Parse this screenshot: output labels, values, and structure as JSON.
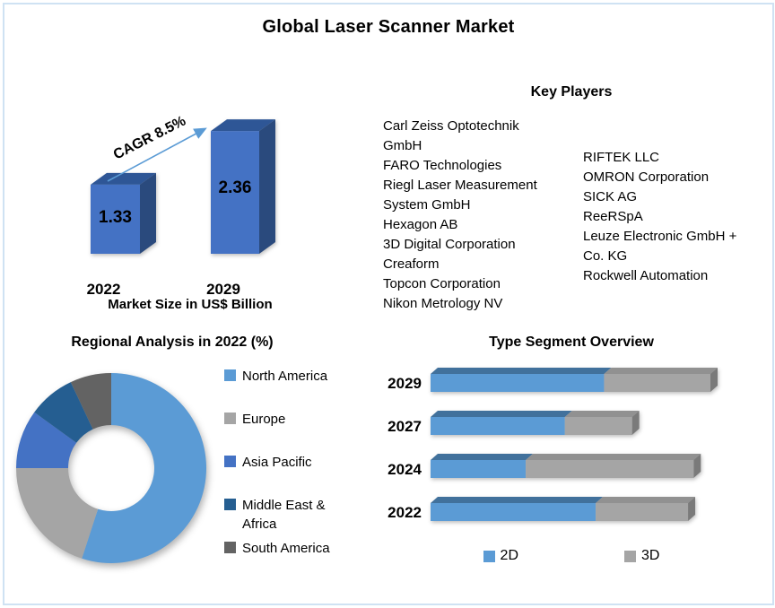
{
  "page": {
    "title": "Global Laser Scanner Market",
    "border_color": "#cfe2f3",
    "background": "#ffffff"
  },
  "key_players": {
    "heading": "Key Players",
    "column1": [
      "Carl Zeiss Optotechnik GmbH",
      "FARO Technologies",
      "Riegl Laser Measurement System GmbH",
      "Hexagon AB",
      "3D Digital Corporation",
      "Creaform",
      "Topcon Corporation",
      "Nikon Metrology NV"
    ],
    "column2": [
      "RIFTEK LLC",
      "OMRON Corporation",
      "SICK AG",
      "ReeRSpA",
      "Leuze Electronic GmbH + Co. KG",
      "Rockwell Automation"
    ]
  },
  "chart_data": [
    {
      "id": "market-size",
      "type": "bar",
      "title": "Market Size in US$ Billion",
      "categories": [
        "2022",
        "2029"
      ],
      "values": [
        1.33,
        2.36
      ],
      "value_labels": [
        "1.33",
        "2.36"
      ],
      "annotation": "CAGR 8.5%",
      "ylim": [
        0,
        2.6
      ],
      "bar_color": "#4472c4",
      "bar_top_color": "#2e5696",
      "bar_side_color": "#2a4a7d",
      "arrow_color": "#5b9bd5"
    },
    {
      "id": "regional",
      "type": "pie",
      "subtype": "donut",
      "title": "Regional Analysis in 2022 (%)",
      "labels": [
        "North America",
        "Europe",
        "Asia Pacific",
        "Middle East & Africa",
        "South America"
      ],
      "values": [
        55,
        20,
        10,
        8,
        7
      ],
      "colors": [
        "#5b9bd5",
        "#a5a5a5",
        "#4472c4",
        "#255e91",
        "#636363"
      ],
      "hole_ratio": 0.45,
      "legend_position": "right"
    },
    {
      "id": "type-segment",
      "type": "bar",
      "subtype": "stacked-horizontal-3d",
      "title": "Type Segment Overview",
      "categories": [
        "2029",
        "2027",
        "2024",
        "2022"
      ],
      "series": [
        {
          "name": "2D",
          "color": "#5b9bd5",
          "top_color": "#41719c",
          "values": [
            62,
            48,
            34,
            59
          ]
        },
        {
          "name": "3D",
          "color": "#a5a5a5",
          "top_color": "#919191",
          "cap_color": "#7a7a7a",
          "values": [
            38,
            24,
            60,
            33
          ]
        }
      ],
      "xlim": [
        0,
        100
      ],
      "legend_position": "bottom"
    }
  ]
}
